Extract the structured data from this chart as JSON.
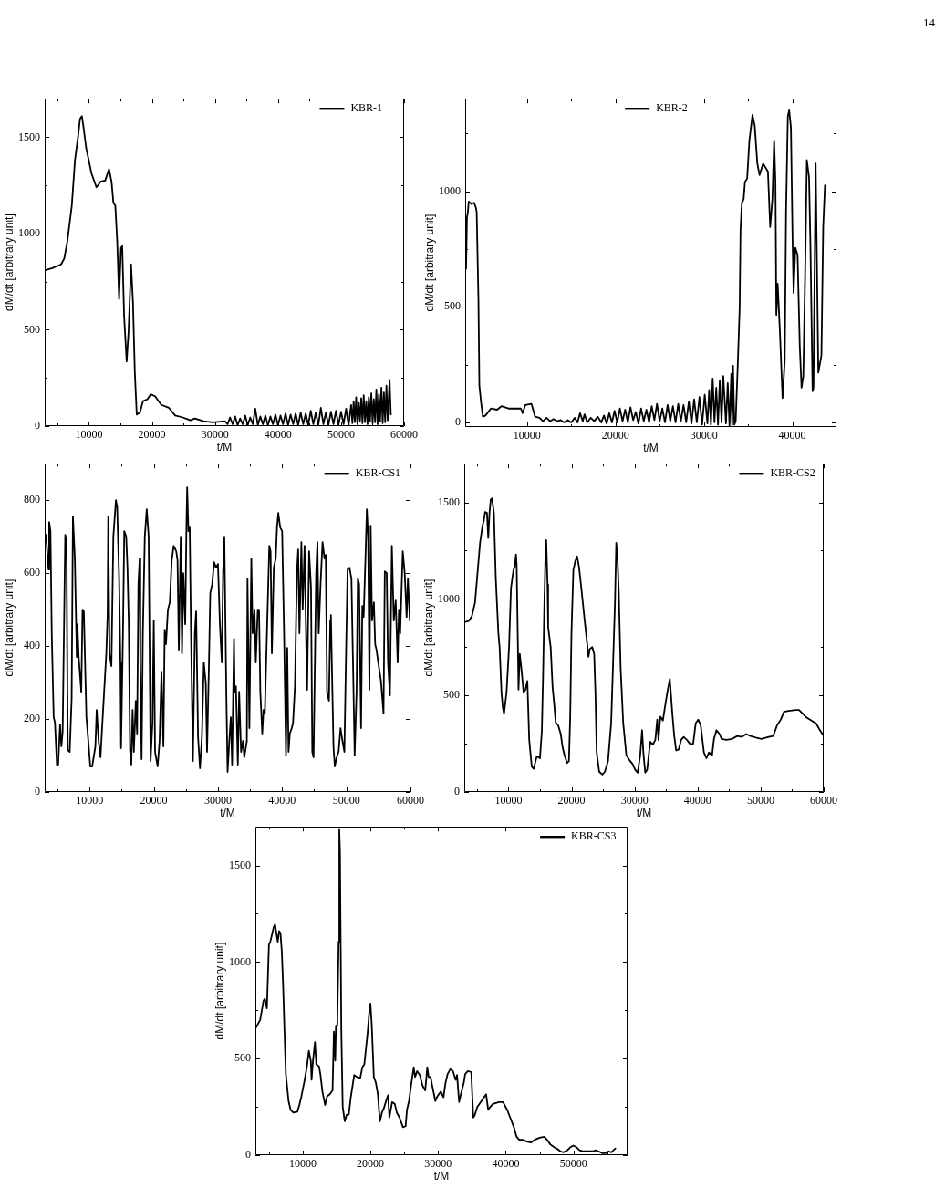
{
  "chart_data": [
    {
      "type": "line",
      "xlabel": "t/M",
      "ylabel": "dM/dt [arbitrary unit]",
      "xlim": [
        3000,
        60000
      ],
      "ylim": [
        0,
        1700
      ],
      "grid": false,
      "legend": "top right",
      "marker": "none",
      "line_style": "solid",
      "annotations": [
        "14"
      ],
      "xticks": [
        {
          "value": 5000,
          "label": null
        },
        10000,
        {
          "value": 15000,
          "label": null
        },
        20000,
        {
          "value": 25000,
          "label": null
        },
        30000,
        {
          "value": 35000,
          "label": null
        },
        40000,
        {
          "value": 45000,
          "label": null
        },
        50000,
        {
          "value": 55000,
          "label": null
        },
        60000
      ],
      "yticks": [
        0,
        {
          "value": 250,
          "label": null
        },
        500,
        {
          "value": 750,
          "label": null
        },
        1000,
        {
          "value": 1250,
          "label": null
        },
        1500
      ],
      "x": [
        3100,
        4200,
        5600,
        6100,
        6600,
        7300,
        7800,
        8300,
        8600,
        8900,
        9100,
        9600,
        10000,
        10400,
        11200,
        11900,
        12600,
        13200,
        13600,
        13900,
        14200,
        14500,
        14800,
        15100,
        15300,
        15600,
        16000,
        16300,
        16700,
        17000,
        17300,
        17600,
        18100,
        18600,
        19300,
        19800,
        20500,
        21500,
        22700,
        23700,
        24900,
        26100,
        26800,
        28200,
        29700,
        31600,
        32000,
        32400,
        32800,
        33200,
        33600,
        34000,
        34400,
        34800,
        35200,
        35600,
        36000,
        36400,
        36800,
        37200,
        37600,
        38000,
        38400,
        38800,
        39200,
        39600,
        40000,
        40400,
        40800,
        41200,
        41600,
        42000,
        42400,
        42800,
        43200,
        43600,
        44000,
        44400,
        44800,
        45200,
        45600,
        46000,
        46400,
        46800,
        47200,
        47600,
        48000,
        48400,
        48800,
        49200,
        49600,
        50000,
        50400,
        50800,
        51200,
        51600,
        51800,
        52000,
        52200,
        52400,
        52600,
        52800,
        53000,
        53200,
        53400,
        53600,
        53800,
        54000,
        54200,
        54400,
        54600,
        54800,
        55000,
        55200,
        55400,
        55600,
        55800,
        56000,
        56200,
        56400,
        56600,
        56800,
        57000,
        57200,
        57400,
        57700,
        57900
      ],
      "series": [
        {
          "name": "KBR-1",
          "color": "#000000",
          "values": [
            810,
            820,
            840,
            870,
            960,
            1145,
            1380,
            1505,
            1595,
            1610,
            1565,
            1440,
            1380,
            1315,
            1240,
            1270,
            1275,
            1335,
            1270,
            1160,
            1145,
            960,
            660,
            925,
            935,
            570,
            335,
            490,
            840,
            645,
            275,
            60,
            70,
            130,
            140,
            165,
            155,
            110,
            95,
            55,
            45,
            30,
            40,
            25,
            20,
            25,
            10,
            45,
            10,
            50,
            5,
            40,
            10,
            55,
            5,
            45,
            10,
            90,
            5,
            50,
            10,
            55,
            5,
            50,
            10,
            60,
            5,
            55,
            10,
            65,
            5,
            60,
            10,
            65,
            5,
            70,
            10,
            65,
            5,
            80,
            10,
            70,
            5,
            95,
            10,
            70,
            5,
            75,
            10,
            80,
            5,
            75,
            10,
            90,
            5,
            110,
            15,
            130,
            20,
            150,
            10,
            120,
            25,
            145,
            15,
            160,
            20,
            130,
            10,
            150,
            25,
            170,
            15,
            140,
            20,
            190,
            10,
            165,
            25,
            200,
            15,
            175,
            20,
            210,
            30,
            240,
            60
          ]
        }
      ]
    },
    {
      "type": "line",
      "xlabel": "t/M",
      "ylabel": "dM/dt [arbitrary unit]",
      "xlim": [
        3000,
        45000
      ],
      "ylim": [
        -20,
        1400
      ],
      "grid": false,
      "legend": "top",
      "marker": "none",
      "line_style": "solid",
      "xticks": [
        {
          "value": 5000,
          "label": null
        },
        10000,
        {
          "value": 15000,
          "label": null
        },
        20000,
        {
          "value": 25000,
          "label": null
        },
        30000,
        {
          "value": 35000,
          "label": null
        },
        40000
      ],
      "yticks": [
        0,
        {
          "value": 250,
          "label": null
        },
        500,
        {
          "value": 750,
          "label": null
        },
        1000,
        {
          "value": 1250,
          "label": null
        }
      ],
      "x": [
        3100,
        3200,
        3300,
        3400,
        3700,
        4000,
        4200,
        4300,
        4500,
        4600,
        4800,
        5000,
        5300,
        5900,
        6600,
        7100,
        7900,
        9300,
        9500,
        9800,
        10500,
        10900,
        11400,
        11800,
        12200,
        12600,
        13000,
        13400,
        13800,
        14200,
        14600,
        15000,
        15400,
        15700,
        16000,
        16300,
        16500,
        16800,
        17200,
        17600,
        18000,
        18400,
        18700,
        19000,
        19300,
        19600,
        19900,
        20200,
        20500,
        20800,
        21100,
        21400,
        21700,
        22000,
        22300,
        22600,
        22900,
        23200,
        23500,
        23800,
        24100,
        24400,
        24700,
        25000,
        25300,
        25600,
        25900,
        26200,
        26500,
        26800,
        27100,
        27400,
        27700,
        28000,
        28300,
        28600,
        28900,
        29200,
        29500,
        29800,
        30100,
        30400,
        30600,
        30800,
        31000,
        31200,
        31400,
        31600,
        31800,
        32000,
        32200,
        32500,
        32700,
        32900,
        33100,
        33200,
        33300,
        33450,
        33600,
        33850,
        34050,
        34150,
        34300,
        34500,
        34650,
        34900,
        35150,
        35500,
        35750,
        36050,
        36300,
        36700,
        37250,
        37500,
        37750,
        37950,
        38100,
        38200,
        38350,
        38600,
        38900,
        39150,
        39300,
        39500,
        39650,
        39850,
        40050,
        40150,
        40350,
        40600,
        40850,
        41050,
        41250,
        41450,
        41650,
        41900,
        42050,
        42300,
        42400,
        42650,
        42950,
        43300,
        43500,
        43700
      ],
      "series": [
        {
          "name": "KBR-2",
          "color": "#000000",
          "values": [
            665,
            885,
            910,
            955,
            945,
            950,
            930,
            910,
            525,
            160,
            85,
            25,
            30,
            60,
            55,
            70,
            60,
            60,
            40,
            75,
            80,
            25,
            20,
            5,
            20,
            5,
            15,
            5,
            10,
            0,
            10,
            0,
            20,
            0,
            40,
            5,
            35,
            0,
            20,
            5,
            25,
            0,
            30,
            -5,
            40,
            0,
            50,
            0,
            60,
            5,
            55,
            0,
            65,
            10,
            45,
            -5,
            60,
            5,
            55,
            0,
            70,
            10,
            80,
            5,
            60,
            0,
            75,
            5,
            70,
            0,
            80,
            5,
            75,
            0,
            90,
            -5,
            100,
            0,
            110,
            -10,
            120,
            -5,
            140,
            -10,
            190,
            0,
            150,
            -10,
            180,
            0,
            200,
            -5,
            170,
            -15,
            210,
            -10,
            245,
            -10,
            5,
            265,
            495,
            835,
            950,
            965,
            1040,
            1055,
            1220,
            1330,
            1285,
            1120,
            1070,
            1120,
            1085,
            845,
            965,
            1220,
            1040,
            465,
            600,
            395,
            105,
            265,
            910,
            1325,
            1350,
            1275,
            755,
            560,
            755,
            725,
            330,
            150,
            200,
            625,
            1135,
            1060,
            780,
            135,
            150,
            1120,
            215,
            290,
            845,
            1025
          ]
        }
      ]
    },
    {
      "type": "line",
      "xlabel": "t/M",
      "ylabel": "dM/dt [arbitrary unit]",
      "xlim": [
        3000,
        60000
      ],
      "ylim": [
        0,
        900
      ],
      "grid": false,
      "legend": "top right",
      "marker": "none",
      "line_style": "solid",
      "xticks": [
        {
          "value": 5000,
          "label": null
        },
        10000,
        {
          "value": 15000,
          "label": null
        },
        20000,
        {
          "value": 25000,
          "label": null
        },
        30000,
        {
          "value": 35000,
          "label": null
        },
        40000,
        {
          "value": 45000,
          "label": null
        },
        50000,
        {
          "value": 55000,
          "label": null
        },
        60000
      ],
      "yticks": [
        0,
        {
          "value": 100,
          "label": null
        },
        200,
        {
          "value": 300,
          "label": null
        },
        400,
        {
          "value": 500,
          "label": null
        },
        600,
        {
          "value": 700,
          "label": null
        },
        800
      ],
      "x": [
        3000,
        3200,
        3600,
        3700,
        3900,
        4100,
        4400,
        4600,
        4900,
        5100,
        5400,
        5600,
        5800,
        6200,
        6400,
        6600,
        6900,
        7200,
        7400,
        7700,
        8000,
        8100,
        8300,
        8700,
        8900,
        9100,
        9500,
        9800,
        10100,
        10400,
        10900,
        11100,
        11400,
        11700,
        11900,
        12200,
        12600,
        12800,
        12900,
        13100,
        13400,
        13700,
        14100,
        14300,
        14600,
        14800,
        14900,
        15200,
        15400,
        15700,
        15900,
        16100,
        16300,
        16500,
        16700,
        16900,
        17200,
        17400,
        17600,
        17800,
        17900,
        18100,
        18300,
        18600,
        18900,
        19200,
        19500,
        19800,
        20000,
        20200,
        20600,
        20900,
        21200,
        21500,
        21700,
        21900,
        22200,
        22500,
        22800,
        23100,
        23500,
        23700,
        23900,
        24200,
        24400,
        24600,
        24900,
        25100,
        25200,
        25400,
        25600,
        25800,
        26100,
        26400,
        26600,
        26900,
        27200,
        27500,
        27800,
        28100,
        28300,
        28600,
        28800,
        29100,
        29400,
        29700,
        30000,
        30300,
        30600,
        30800,
        31000,
        31300,
        31500,
        31800,
        32000,
        32200,
        32500,
        32600,
        32800,
        33100,
        33300,
        33600,
        33900,
        34100,
        34500,
        34600,
        34900,
        35200,
        35400,
        35700,
        35900,
        36200,
        36400,
        36600,
        36900,
        37100,
        37300,
        37700,
        38000,
        38200,
        38400,
        38700,
        39000,
        39200,
        39400,
        39700,
        40000,
        40300,
        40600,
        40800,
        41000,
        41200,
        41500,
        41700,
        42000,
        42300,
        42500,
        42700,
        43000,
        43200,
        43500,
        43700,
        43900,
        44200,
        44500,
        44700,
        44900,
        45300,
        45500,
        45700,
        46000,
        46300,
        46600,
        46800,
        47000,
        47300,
        47500,
        47600,
        48000,
        48200,
        48500,
        48800,
        49100,
        49400,
        49700,
        50000,
        50200,
        50500,
        50800,
        51100,
        51300,
        51600,
        51800,
        52000,
        52300,
        52500,
        52700,
        53000,
        53200,
        53400,
        53600,
        53800,
        54000,
        54300,
        54500,
        54700,
        55100,
        55400,
        55800,
        56000,
        56300,
        56500,
        56800,
        57100,
        57400,
        57700,
        58000,
        58200,
        58400,
        58800,
        59100,
        59400,
        59600,
        59900
      ],
      "series": [
        {
          "name": "KBR-CS1",
          "color": "#000000",
          "values": [
            690,
            705,
            610,
            740,
            715,
            435,
            205,
            190,
            75,
            75,
            185,
            125,
            165,
            705,
            690,
            115,
            110,
            255,
            755,
            640,
            370,
            460,
            370,
            275,
            500,
            495,
            205,
            140,
            70,
            70,
            125,
            225,
            140,
            95,
            160,
            255,
            380,
            485,
            755,
            380,
            345,
            700,
            800,
            780,
            585,
            355,
            120,
            435,
            715,
            700,
            615,
            465,
            115,
            75,
            225,
            110,
            250,
            160,
            570,
            640,
            355,
            90,
            435,
            700,
            775,
            700,
            85,
            190,
            470,
            110,
            70,
            140,
            330,
            125,
            445,
            405,
            500,
            520,
            635,
            675,
            660,
            635,
            390,
            700,
            380,
            600,
            460,
            740,
            835,
            715,
            725,
            435,
            85,
            435,
            495,
            150,
            65,
            150,
            355,
            300,
            110,
            355,
            545,
            570,
            630,
            615,
            625,
            460,
            355,
            600,
            700,
            275,
            55,
            150,
            205,
            75,
            420,
            275,
            290,
            75,
            275,
            110,
            140,
            95,
            140,
            585,
            175,
            640,
            435,
            500,
            355,
            500,
            500,
            275,
            160,
            225,
            215,
            480,
            675,
            660,
            380,
            615,
            640,
            725,
            765,
            725,
            715,
            435,
            100,
            395,
            110,
            160,
            175,
            190,
            290,
            600,
            665,
            435,
            685,
            500,
            675,
            455,
            280,
            660,
            560,
            110,
            95,
            600,
            685,
            435,
            575,
            685,
            640,
            650,
            275,
            250,
            470,
            485,
            125,
            70,
            95,
            110,
            175,
            140,
            110,
            420,
            610,
            615,
            585,
            300,
            100,
            275,
            585,
            570,
            175,
            510,
            480,
            650,
            775,
            700,
            280,
            730,
            470,
            520,
            405,
            390,
            340,
            305,
            215,
            605,
            600,
            355,
            265,
            675,
            470,
            525,
            355,
            500,
            435,
            660,
            600,
            480,
            585,
            470
          ]
        }
      ]
    },
    {
      "type": "line",
      "xlabel": "t/M",
      "ylabel": "dM/dt [arbitrary unit]",
      "xlim": [
        3000,
        60000
      ],
      "ylim": [
        0,
        1700
      ],
      "grid": false,
      "legend": "top right",
      "marker": "none",
      "line_style": "solid",
      "xticks": [
        {
          "value": 5000,
          "label": null
        },
        10000,
        {
          "value": 15000,
          "label": null
        },
        20000,
        {
          "value": 25000,
          "label": null
        },
        30000,
        {
          "value": 35000,
          "label": null
        },
        40000,
        {
          "value": 45000,
          "label": null
        },
        50000,
        {
          "value": 55000,
          "label": null
        },
        60000
      ],
      "yticks": [
        0,
        {
          "value": 250,
          "label": null
        },
        500,
        {
          "value": 750,
          "label": null
        },
        1000,
        {
          "value": 1250,
          "label": null
        },
        1500
      ],
      "x": [
        3100,
        3700,
        4200,
        4700,
        5100,
        5500,
        5900,
        6100,
        6300,
        6600,
        6800,
        7000,
        7200,
        7400,
        7700,
        8000,
        8400,
        8600,
        8900,
        9100,
        9300,
        9700,
        10100,
        10400,
        10800,
        11000,
        11200,
        11300,
        11500,
        11600,
        11800,
        12100,
        12400,
        12700,
        13000,
        13300,
        13700,
        14000,
        14500,
        15000,
        15300,
        15500,
        15700,
        15900,
        16000,
        16200,
        16300,
        16700,
        17000,
        17300,
        17500,
        17900,
        18300,
        18600,
        18900,
        19300,
        19600,
        19800,
        20000,
        20300,
        20600,
        20900,
        21200,
        21500,
        21800,
        22100,
        22500,
        22700,
        22900,
        23300,
        23600,
        23800,
        24000,
        24400,
        24900,
        25300,
        25800,
        26300,
        26600,
        26900,
        27100,
        27300,
        27500,
        27800,
        28200,
        28700,
        29200,
        29700,
        30100,
        30500,
        30900,
        31200,
        31400,
        31700,
        32000,
        32300,
        32500,
        32900,
        33300,
        33600,
        33800,
        34100,
        34500,
        34900,
        35200,
        35600,
        36000,
        36300,
        36600,
        37000,
        37400,
        37800,
        38300,
        38900,
        39300,
        39700,
        40100,
        40500,
        41000,
        41400,
        41800,
        42300,
        42600,
        43000,
        43500,
        43800,
        44600,
        45500,
        46300,
        47000,
        47700,
        48400,
        49400,
        50100,
        51300,
        52000,
        52600,
        53200,
        53700,
        54400,
        55600,
        56100,
        56700,
        57300,
        58300,
        58800,
        59400,
        60000
      ],
      "series": [
        {
          "name": "KBR-CS2",
          "color": "#000000",
          "values": [
            880,
            885,
            910,
            980,
            1135,
            1290,
            1380,
            1405,
            1450,
            1445,
            1315,
            1445,
            1515,
            1520,
            1445,
            1105,
            825,
            750,
            515,
            440,
            405,
            515,
            750,
            1055,
            1150,
            1165,
            1230,
            1180,
            765,
            530,
            715,
            625,
            515,
            530,
            575,
            270,
            130,
            120,
            185,
            175,
            315,
            610,
            980,
            1260,
            1305,
            1075,
            855,
            750,
            545,
            440,
            360,
            345,
            300,
            230,
            190,
            150,
            160,
            390,
            825,
            1150,
            1195,
            1220,
            1165,
            1075,
            980,
            885,
            765,
            700,
            740,
            750,
            715,
            515,
            205,
            105,
            90,
            105,
            160,
            360,
            670,
            980,
            1290,
            1210,
            1040,
            640,
            360,
            190,
            165,
            145,
            115,
            100,
            190,
            320,
            205,
            100,
            115,
            205,
            260,
            245,
            270,
            375,
            270,
            390,
            370,
            455,
            515,
            585,
            405,
            290,
            215,
            220,
            270,
            285,
            270,
            245,
            250,
            355,
            375,
            345,
            205,
            175,
            205,
            190,
            275,
            320,
            300,
            275,
            270,
            275,
            290,
            285,
            300,
            290,
            280,
            275,
            285,
            290,
            345,
            375,
            415,
            420,
            425,
            425,
            405,
            385,
            365,
            355,
            320,
            290
          ]
        }
      ]
    },
    {
      "type": "line",
      "xlabel": "t/M",
      "ylabel": "dM/dt [arbitrary unit]",
      "xlim": [
        3000,
        58000
      ],
      "ylim": [
        0,
        1700
      ],
      "grid": false,
      "legend": "top right",
      "marker": "none",
      "line_style": "solid",
      "xticks": [
        {
          "value": 5000,
          "label": null
        },
        10000,
        {
          "value": 15000,
          "label": null
        },
        20000,
        {
          "value": 25000,
          "label": null
        },
        30000,
        {
          "value": 35000,
          "label": null
        },
        40000,
        {
          "value": 45000,
          "label": null
        },
        50000,
        {
          "value": 55000,
          "label": null
        }
      ],
      "yticks": [
        0,
        {
          "value": 250,
          "label": null
        },
        500,
        {
          "value": 750,
          "label": null
        },
        1000,
        {
          "value": 1250,
          "label": null
        },
        1500
      ],
      "x": [
        3000,
        3700,
        4200,
        4400,
        4700,
        5000,
        5200,
        5700,
        5900,
        6300,
        6500,
        6700,
        6900,
        7100,
        7300,
        7500,
        7900,
        8200,
        8600,
        9200,
        9500,
        9800,
        10200,
        10600,
        10900,
        11200,
        11300,
        11500,
        11800,
        12000,
        12400,
        12600,
        12900,
        13300,
        13600,
        14000,
        14400,
        14600,
        14800,
        14900,
        15100,
        15300,
        15400,
        15500,
        15700,
        15900,
        16200,
        16500,
        16800,
        17100,
        17600,
        18000,
        18500,
        18800,
        19100,
        19600,
        19800,
        20000,
        20200,
        20500,
        20800,
        21100,
        21400,
        21700,
        22000,
        22300,
        22600,
        22800,
        23200,
        23600,
        23900,
        24300,
        24800,
        25200,
        25400,
        25700,
        26000,
        26400,
        26600,
        26900,
        27300,
        27700,
        28100,
        28400,
        28600,
        28900,
        29100,
        29600,
        29900,
        30400,
        30800,
        31100,
        31400,
        31800,
        32200,
        32600,
        32800,
        33100,
        33400,
        33800,
        34000,
        34400,
        34900,
        35200,
        35400,
        35800,
        36100,
        36400,
        36800,
        37100,
        37400,
        37600,
        38100,
        39000,
        39600,
        40200,
        40700,
        41200,
        41600,
        42000,
        42500,
        43100,
        43700,
        44300,
        45000,
        45700,
        46100,
        46600,
        47200,
        47700,
        48100,
        48500,
        49100,
        49500,
        50000,
        50500,
        50900,
        51500,
        52200,
        52800,
        53300,
        53700,
        54300,
        54700,
        55200,
        55600,
        55900,
        56200
      ],
      "series": [
        {
          "name": "KBR-CS3",
          "color": "#000000",
          "values": [
            655,
            700,
            800,
            810,
            760,
            1090,
            1105,
            1180,
            1195,
            1105,
            1160,
            1150,
            1055,
            870,
            640,
            420,
            280,
            235,
            220,
            225,
            260,
            305,
            375,
            455,
            540,
            485,
            390,
            485,
            585,
            470,
            460,
            420,
            330,
            260,
            305,
            315,
            335,
            640,
            490,
            670,
            670,
            1105,
            1685,
            1570,
            640,
            250,
            175,
            210,
            210,
            300,
            415,
            405,
            400,
            455,
            470,
            640,
            730,
            785,
            670,
            405,
            375,
            315,
            175,
            220,
            245,
            280,
            310,
            195,
            275,
            265,
            220,
            195,
            145,
            150,
            235,
            280,
            360,
            455,
            405,
            435,
            415,
            360,
            335,
            455,
            405,
            405,
            365,
            280,
            305,
            330,
            300,
            375,
            420,
            445,
            435,
            390,
            415,
            275,
            320,
            375,
            420,
            435,
            430,
            195,
            205,
            250,
            265,
            280,
            300,
            315,
            235,
            245,
            265,
            275,
            275,
            235,
            190,
            145,
            95,
            80,
            80,
            70,
            65,
            80,
            90,
            95,
            80,
            55,
            40,
            30,
            20,
            15,
            25,
            40,
            50,
            40,
            25,
            20,
            20,
            20,
            25,
            20,
            10,
            10,
            20,
            15,
            25,
            35
          ]
        }
      ]
    }
  ]
}
